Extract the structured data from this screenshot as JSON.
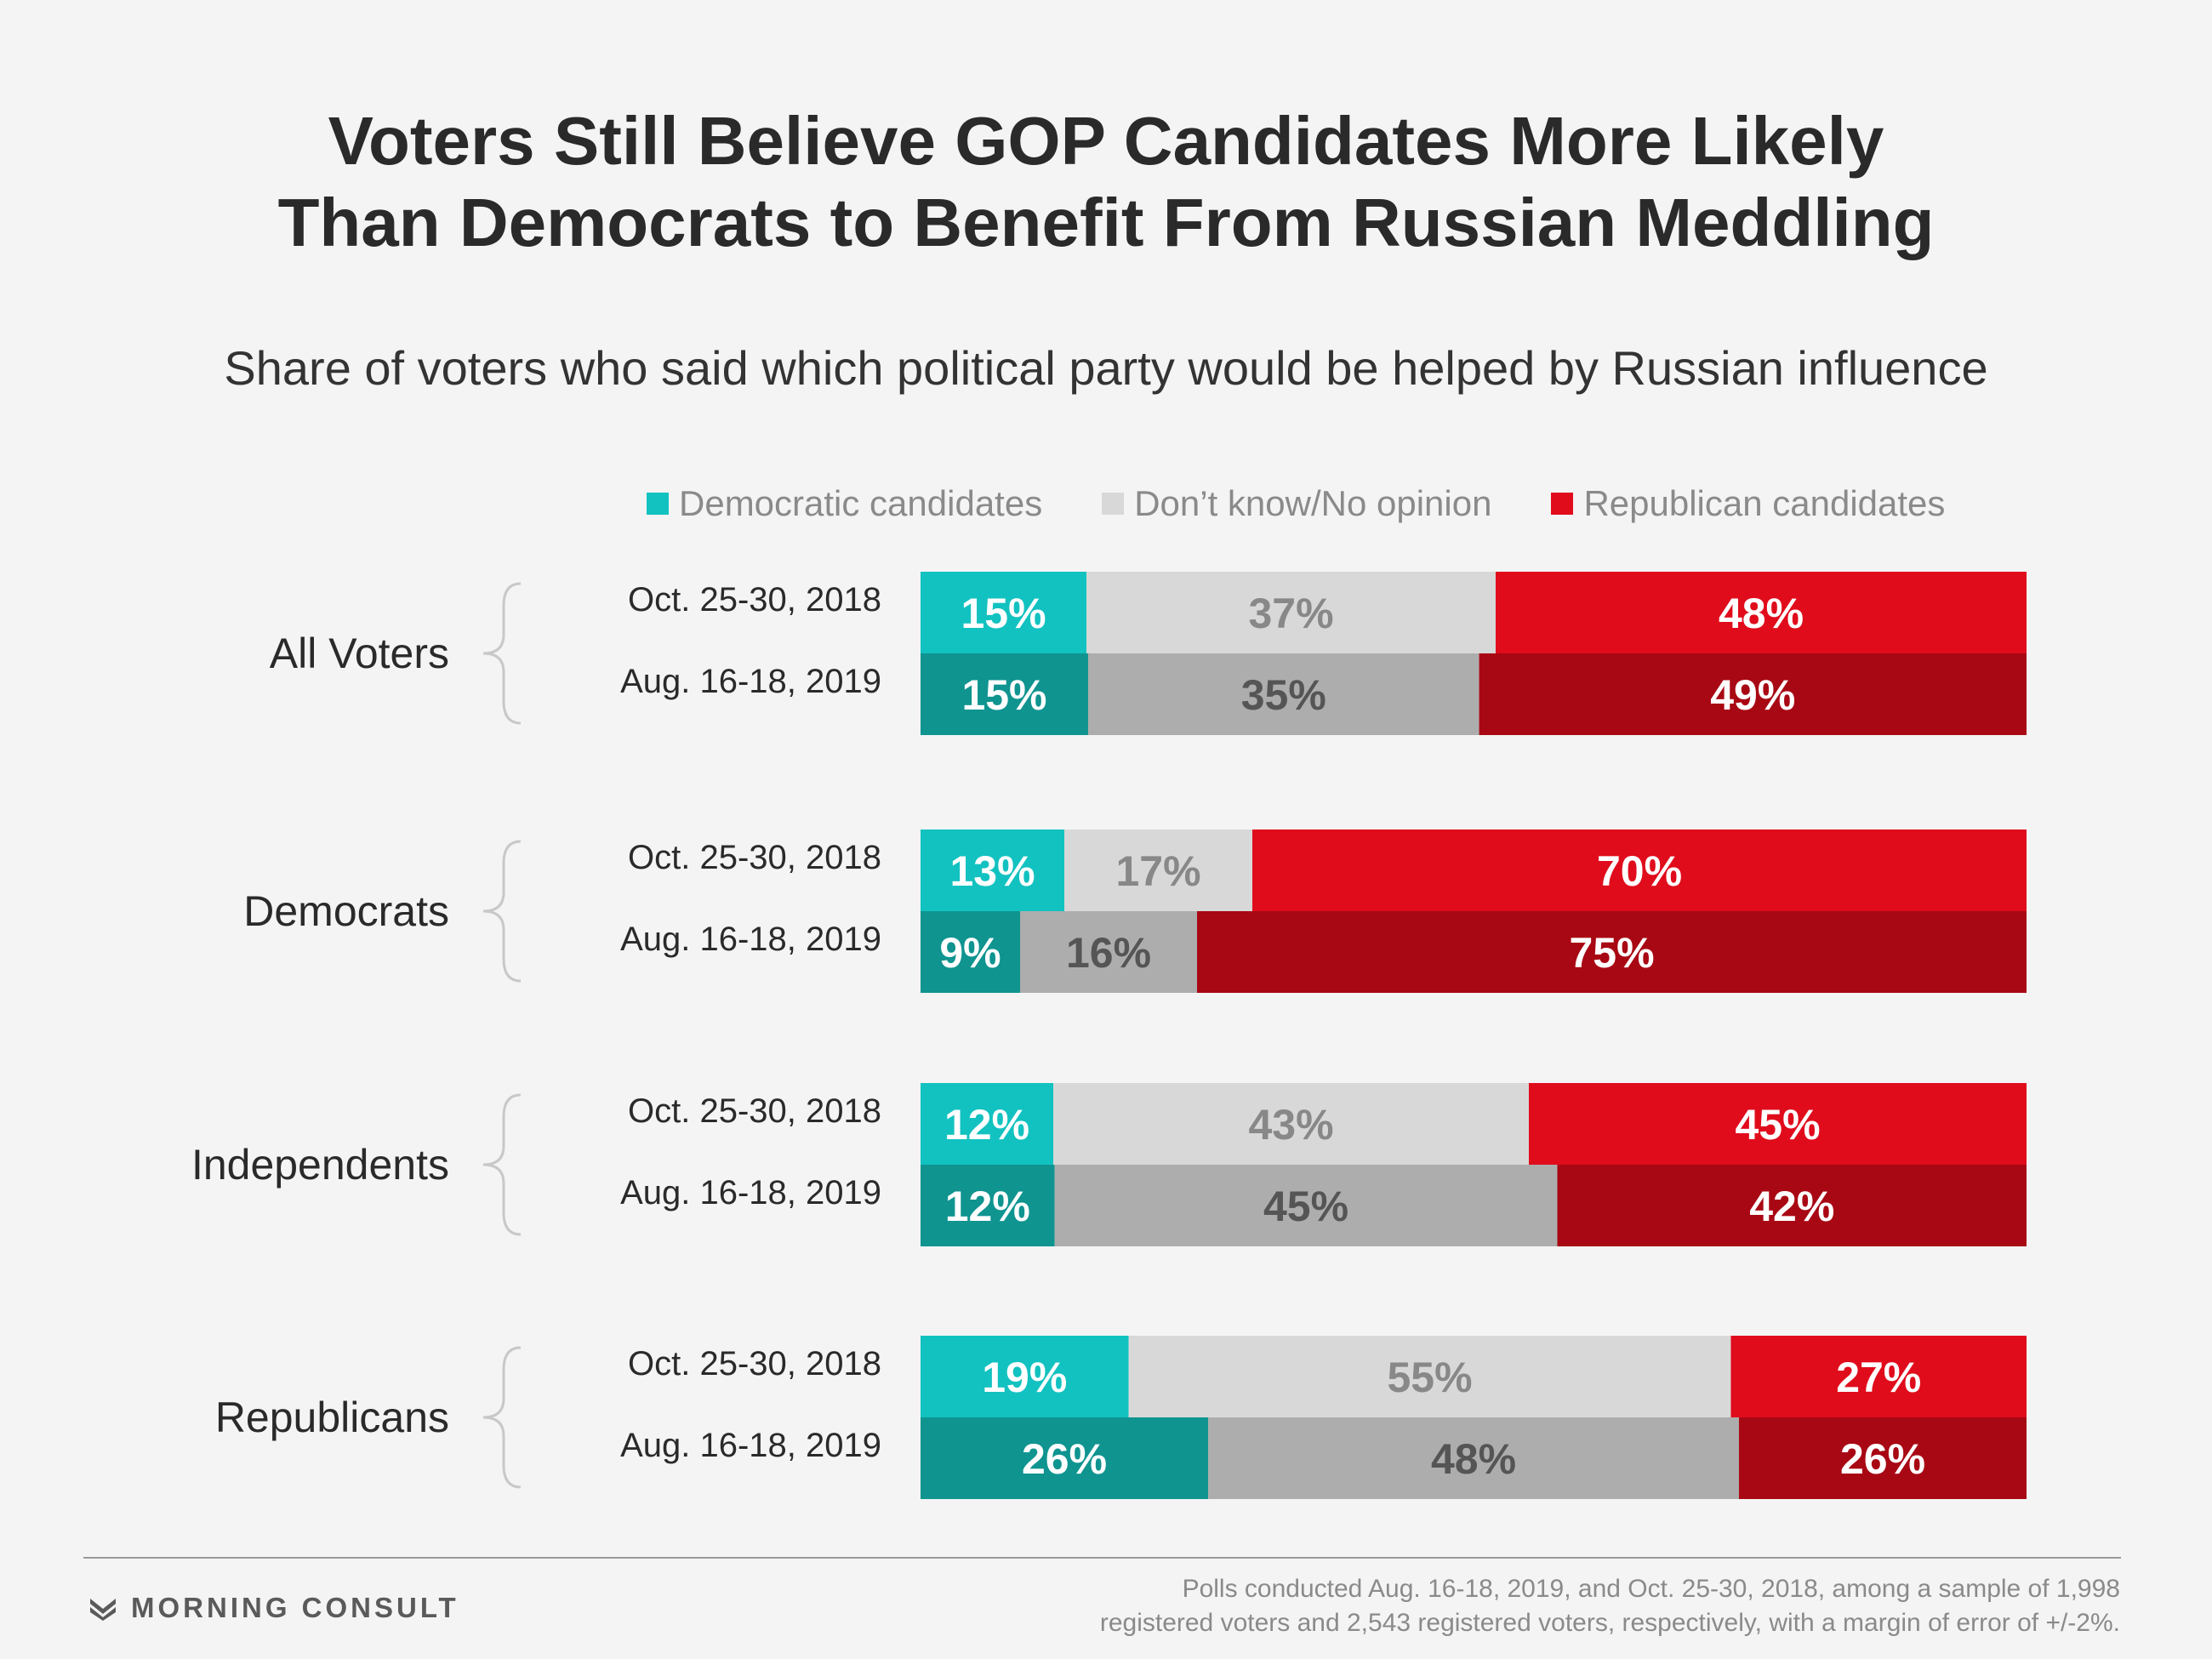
{
  "title_line1": "Voters Still Believe GOP Candidates More Likely",
  "title_line2": "Than Democrats to Benefit From Russian Meddling",
  "subtitle": "Share of voters who said which political party would be helped by Russian influence",
  "legend": {
    "dem": "Democratic candidates",
    "dk": "Don’t know/No opinion",
    "rep": "Republican candidates"
  },
  "colors": {
    "dem_2018": "#12c2c0",
    "dem_2019": "#0f9490",
    "dk_2018": "#d8d8d8",
    "dk_2019": "#adadad",
    "rep_2018": "#e00c1c",
    "rep_2019": "#a80814",
    "label_dark": "#6b6b6b",
    "label_light_bg": "#888888",
    "label_white": "#ffffff"
  },
  "chart_data": {
    "type": "bar",
    "orientation": "horizontal",
    "stacked": true,
    "xlim": [
      0,
      100
    ],
    "series_names": [
      "Democratic candidates",
      "Don’t know/No opinion",
      "Republican candidates"
    ],
    "groups": [
      {
        "name": "All Voters",
        "rows": [
          {
            "period": "Oct. 25-30, 2018",
            "values": [
              15,
              37,
              48
            ],
            "labels": [
              "15%",
              "37%",
              "48%"
            ]
          },
          {
            "period": "Aug. 16-18, 2019",
            "values": [
              15,
              35,
              49
            ],
            "labels": [
              "15%",
              "35%",
              "49%"
            ]
          }
        ]
      },
      {
        "name": "Democrats",
        "rows": [
          {
            "period": "Oct. 25-30, 2018",
            "values": [
              13,
              17,
              70
            ],
            "labels": [
              "13%",
              "17%",
              "70%"
            ]
          },
          {
            "period": "Aug. 16-18, 2019",
            "values": [
              9,
              16,
              75
            ],
            "labels": [
              "9%",
              "16%",
              "75%"
            ]
          }
        ]
      },
      {
        "name": "Independents",
        "rows": [
          {
            "period": "Oct. 25-30, 2018",
            "values": [
              12,
              43,
              45
            ],
            "labels": [
              "12%",
              "43%",
              "45%"
            ]
          },
          {
            "period": "Aug. 16-18, 2019",
            "values": [
              12,
              45,
              42
            ],
            "labels": [
              "12%",
              "45%",
              "42%"
            ]
          }
        ]
      },
      {
        "name": "Republicans",
        "rows": [
          {
            "period": "Oct. 25-30, 2018",
            "values": [
              19,
              55,
              27
            ],
            "labels": [
              "19%",
              "55%",
              "27%"
            ]
          },
          {
            "period": "Aug. 16-18, 2019",
            "values": [
              26,
              48,
              26
            ],
            "labels": [
              "26%",
              "48%",
              "26%"
            ]
          }
        ]
      }
    ]
  },
  "footer": {
    "brand": "MORNING CONSULT",
    "note_line1": "Polls conducted Aug. 16-18, 2019, and Oct. 25-30, 2018, among a sample of 1,998",
    "note_line2": "registered voters and 2,543 registered voters, respectively, with a margin of error of +/-2%."
  }
}
